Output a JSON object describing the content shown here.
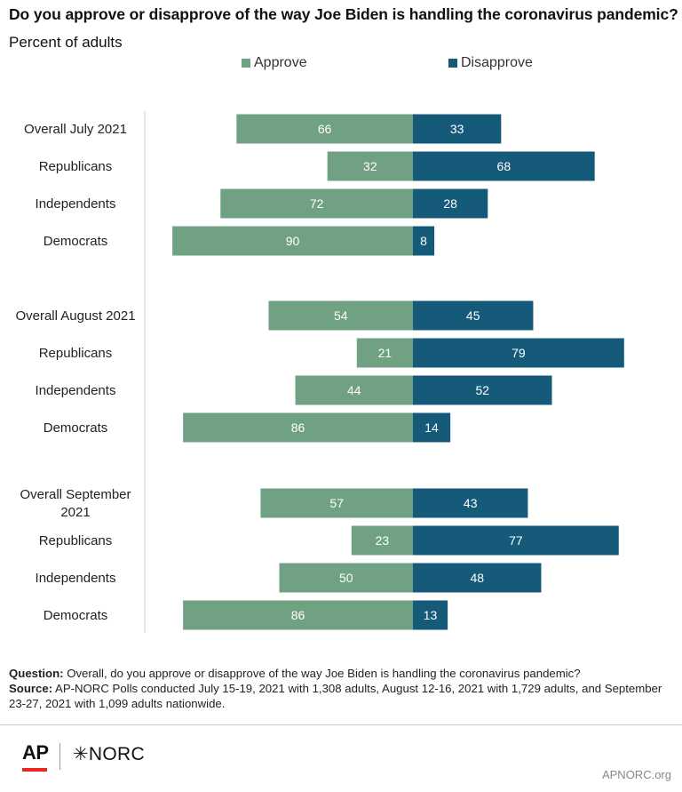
{
  "title": "Do you approve or disapprove of the way Joe Biden is handling the coronavirus pandemic?",
  "subtitle": "Percent of adults",
  "colors": {
    "approve": "#6fa182",
    "disapprove": "#165a7a",
    "axis": "#cccccc"
  },
  "chart_data": {
    "type": "bar",
    "orientation": "horizontal-diverging",
    "series": [
      {
        "name": "Approve",
        "values": [
          66,
          32,
          72,
          90,
          54,
          21,
          44,
          86,
          57,
          23,
          50,
          86
        ]
      },
      {
        "name": "Disapprove",
        "values": [
          33,
          68,
          28,
          8,
          45,
          79,
          52,
          14,
          43,
          77,
          48,
          13
        ]
      }
    ],
    "categories": [
      "Overall July 2021",
      "Republicans",
      "Independents",
      "Democrats",
      "Overall August 2021",
      "Republicans",
      "Independents",
      "Democrats",
      "Overall September 2021",
      "Republicans",
      "Independents",
      "Democrats"
    ],
    "groups": [
      "July 2021",
      "August 2021",
      "September 2021"
    ],
    "legend_position": "top",
    "grid": false
  },
  "notes": {
    "question_label": "Question:",
    "question_text": " Overall, do you approve or disapprove of the way Joe Biden is handling the coronavirus pandemic?",
    "source_label": "Source:",
    "source_text": " AP-NORC Polls conducted July 15-19, 2021 with 1,308 adults, August 12-16, 2021 with 1,729 adults, and September 23-27, 2021 with 1,099 adults nationwide."
  },
  "footer": {
    "ap_logo": "AP",
    "norc_logo": "✳NORC",
    "site": "APNORC.org"
  }
}
